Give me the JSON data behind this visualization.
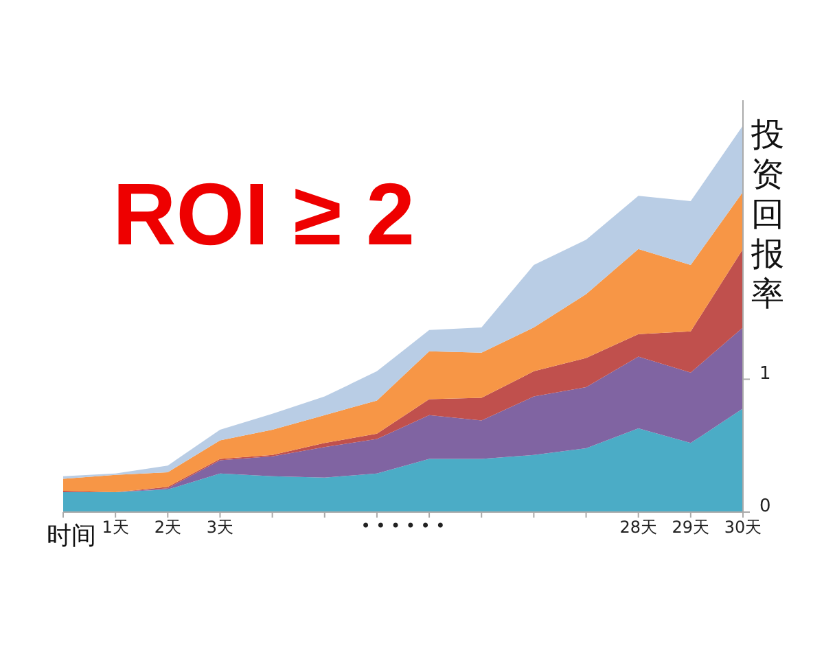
{
  "chart_data": {
    "type": "area",
    "stacked": true,
    "title": "ROI ≥ 2",
    "xlabel": "时间",
    "ylabel": "投资回报率",
    "categories": [
      null,
      "1天",
      "2天",
      "3天",
      null,
      null,
      null,
      null,
      null,
      null,
      null,
      "28天",
      "29天",
      "30天"
    ],
    "annotations": [
      "• • • • • •"
    ],
    "ylim": [
      0,
      3.1
    ],
    "yticks": [
      0,
      1
    ],
    "grid": false,
    "series": [
      {
        "color": "#4bacc6",
        "values": [
          0.15,
          0.15,
          0.17,
          0.29,
          0.27,
          0.26,
          0.29,
          0.4,
          0.4,
          0.43,
          0.48,
          0.63,
          0.52,
          0.78
        ]
      },
      {
        "color": "#8064a2",
        "values": [
          0,
          0,
          0.01,
          0.1,
          0.15,
          0.23,
          0.26,
          0.33,
          0.29,
          0.44,
          0.46,
          0.54,
          0.53,
          0.61
        ]
      },
      {
        "color": "#c0504d",
        "values": [
          0.01,
          0,
          0.01,
          0.01,
          0.01,
          0.03,
          0.04,
          0.12,
          0.17,
          0.19,
          0.22,
          0.17,
          0.31,
          0.59
        ]
      },
      {
        "color": "#f79646",
        "values": [
          0.09,
          0.13,
          0.11,
          0.14,
          0.19,
          0.21,
          0.25,
          0.36,
          0.34,
          0.33,
          0.48,
          0.64,
          0.5,
          0.43
        ]
      },
      {
        "color": "#b9cde5",
        "values": [
          0.02,
          0.01,
          0.05,
          0.08,
          0.12,
          0.14,
          0.22,
          0.16,
          0.19,
          0.47,
          0.41,
          0.4,
          0.48,
          0.5
        ]
      }
    ]
  }
}
